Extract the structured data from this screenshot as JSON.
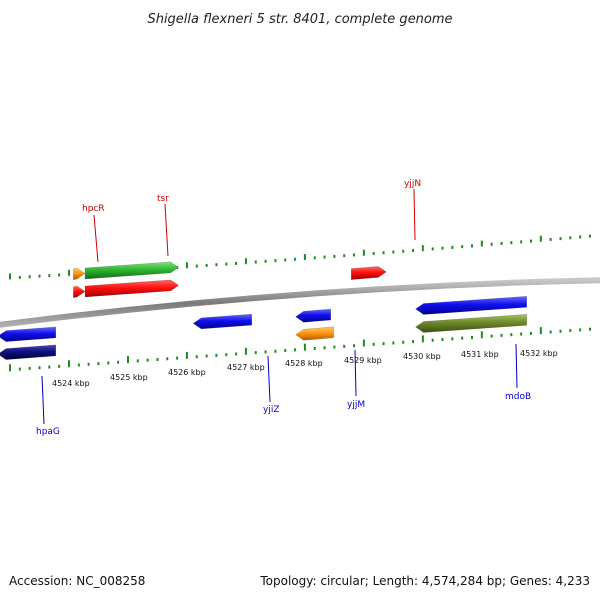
{
  "title": "Shigella flexneri 5 str. 8401, complete genome",
  "footer": {
    "accession": "Accession: NC_008258",
    "summary": "Topology: circular; Length: 4,574,284 bp; Genes: 4,233"
  },
  "colors": {
    "tick": "#1f8a1f",
    "backbone": "#8c8c8c",
    "forward_label": "#cc0000",
    "reverse_label": "#0000cc"
  },
  "scale_labels": [
    "4524 kbp",
    "4525 kbp",
    "4526 kbp",
    "4527 kbp",
    "4528 kbp",
    "4529 kbp",
    "4530 kbp",
    "4531 kbp",
    "4532 kbp"
  ],
  "gene_labels": {
    "forward": [
      "hpcR",
      "tsr",
      "yjjN"
    ],
    "reverse": [
      "hpaG",
      "yjiZ",
      "yjjM",
      "mdoB"
    ]
  },
  "features": [
    {
      "strand": "forward",
      "ring": "inner",
      "color": "red",
      "start_kbp": 4524.85,
      "end_kbp": 4525.05,
      "label": "hpcR"
    },
    {
      "strand": "forward",
      "ring": "outer",
      "color": "orange",
      "start_kbp": 4524.85,
      "end_kbp": 4525.05
    },
    {
      "strand": "forward",
      "ring": "inner",
      "color": "red",
      "start_kbp": 4525.05,
      "end_kbp": 4526.65,
      "label": "tsr"
    },
    {
      "strand": "forward",
      "ring": "outer",
      "color": "green",
      "start_kbp": 4525.05,
      "end_kbp": 4526.65
    },
    {
      "strand": "forward",
      "ring": "inner",
      "color": "red",
      "start_kbp": 4529.6,
      "end_kbp": 4530.2,
      "label": "yjjN"
    },
    {
      "strand": "reverse",
      "ring": "inner",
      "color": "blue",
      "start_kbp": 4523.25,
      "end_kbp": 4524.55,
      "label": "hpaG"
    },
    {
      "strand": "reverse",
      "ring": "outer",
      "color": "navy",
      "start_kbp": 4523.25,
      "end_kbp": 4524.55
    },
    {
      "strand": "reverse",
      "ring": "inner",
      "color": "blue",
      "start_kbp": 4526.9,
      "end_kbp": 4527.9,
      "label": "yjiZ"
    },
    {
      "strand": "reverse",
      "ring": "inner",
      "color": "blue",
      "start_kbp": 4528.65,
      "end_kbp": 4529.25,
      "label": "yjjM"
    },
    {
      "strand": "reverse",
      "ring": "outer",
      "color": "orange",
      "start_kbp": 4528.65,
      "end_kbp": 4529.3
    },
    {
      "strand": "reverse",
      "ring": "inner",
      "color": "blue",
      "start_kbp": 4530.7,
      "end_kbp": 4532.6,
      "label": "mdoB"
    },
    {
      "strand": "reverse",
      "ring": "outer",
      "color": "olive",
      "start_kbp": 4530.7,
      "end_kbp": 4532.6
    }
  ]
}
